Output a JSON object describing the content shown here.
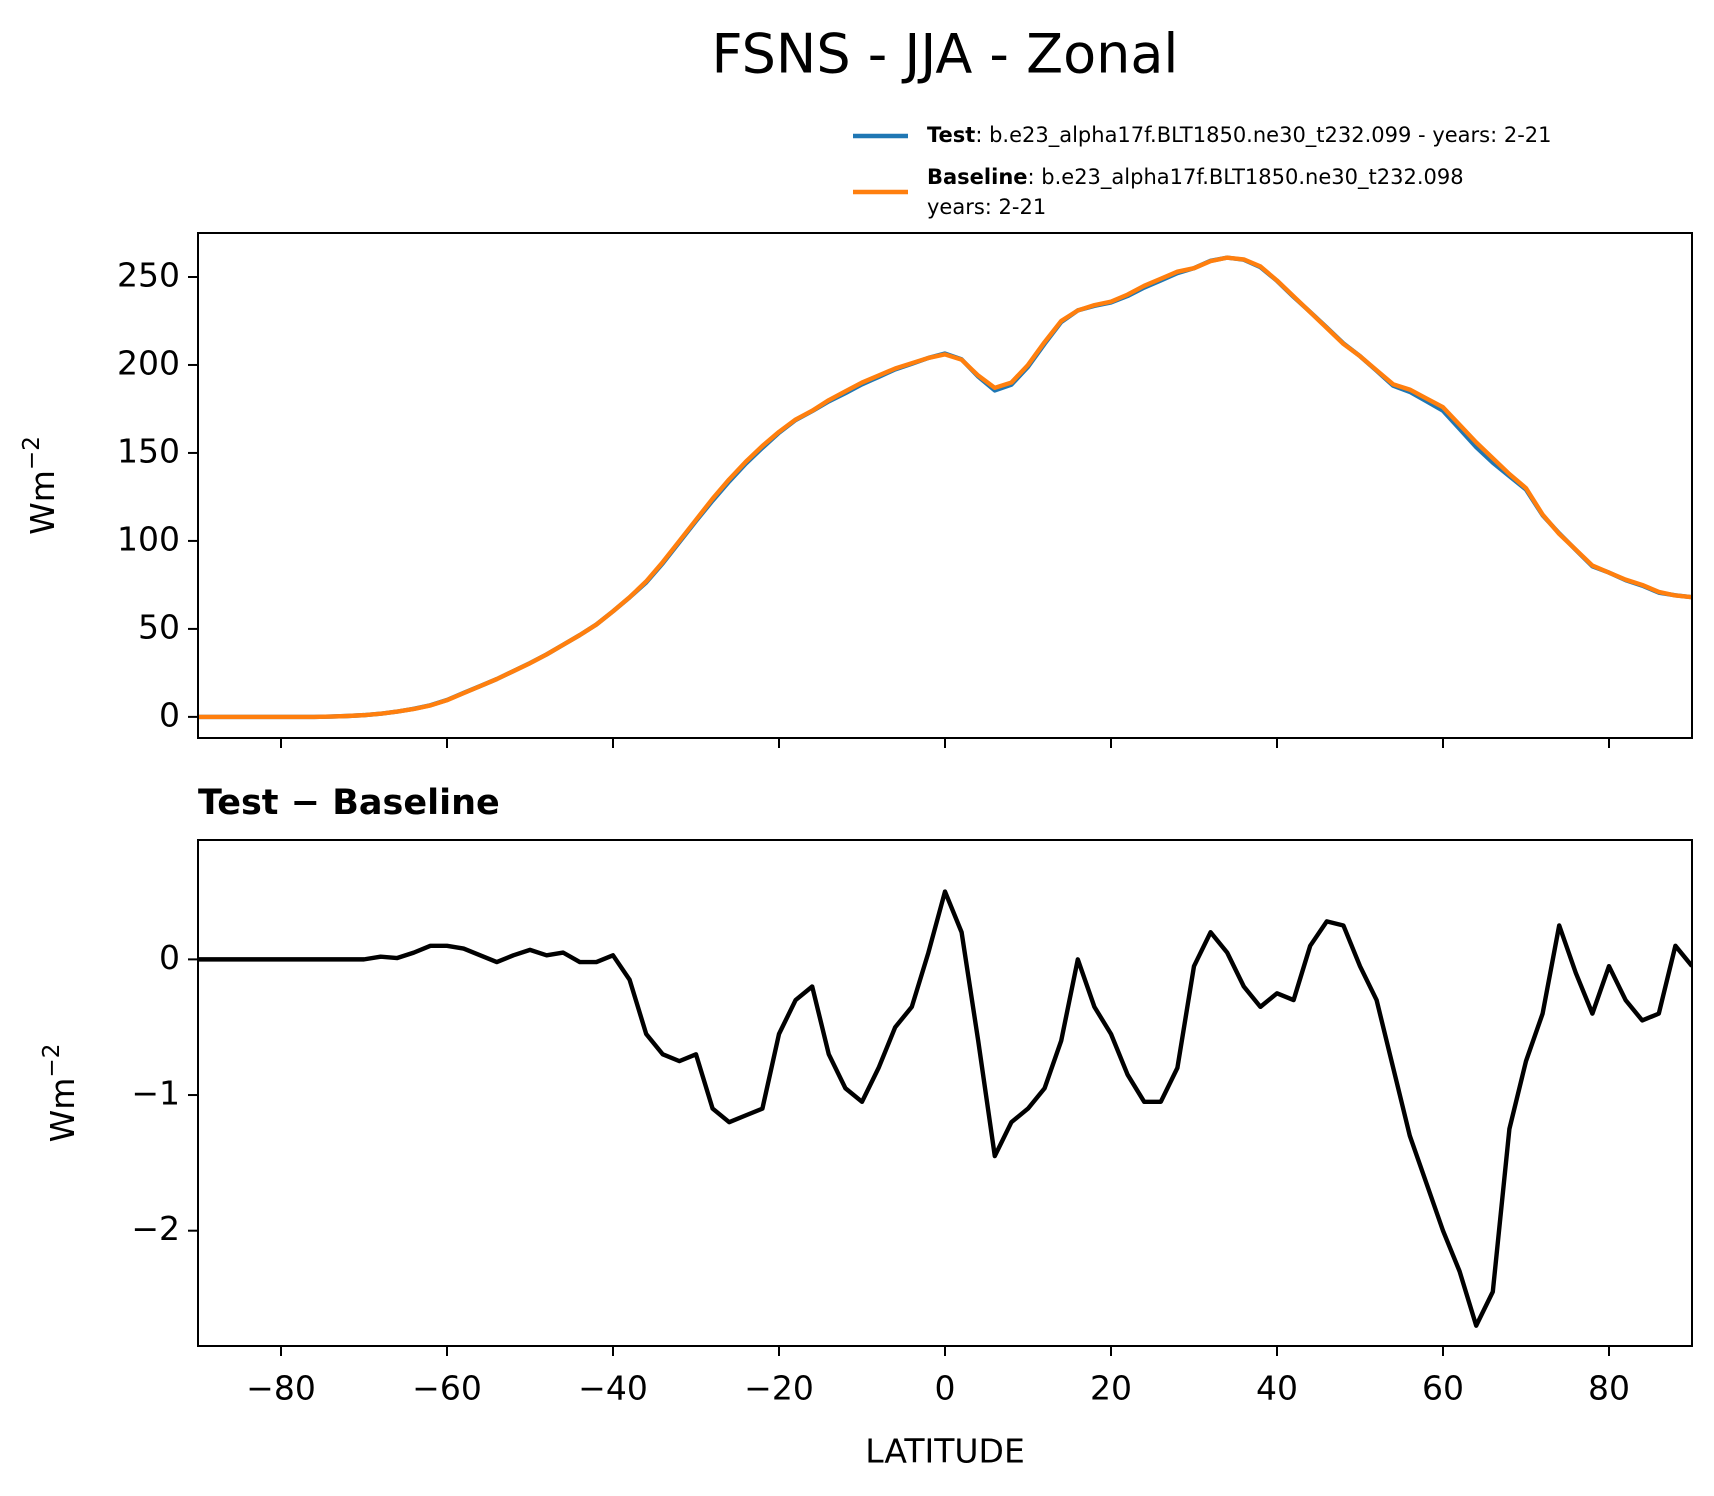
{
  "title": "FSNS - JJA - Zonal",
  "chart_data": [
    {
      "type": "line",
      "ylabel": {
        "base": "Wm",
        "exponent": "−2"
      },
      "legend": "upper right",
      "x": [
        -90,
        -88,
        -86,
        -84,
        -82,
        -80,
        -78,
        -76,
        -74,
        -72,
        -70,
        -68,
        -66,
        -64,
        -62,
        -60,
        -58,
        -56,
        -54,
        -52,
        -50,
        -48,
        -46,
        -44,
        -42,
        -40,
        -38,
        -36,
        -34,
        -32,
        -30,
        -28,
        -26,
        -24,
        -22,
        -20,
        -18,
        -16,
        -14,
        -12,
        -10,
        -8,
        -6,
        -4,
        -2,
        0,
        2,
        4,
        6,
        8,
        10,
        12,
        14,
        16,
        18,
        20,
        22,
        24,
        26,
        28,
        30,
        32,
        34,
        36,
        38,
        40,
        42,
        44,
        46,
        48,
        50,
        52,
        54,
        56,
        58,
        60,
        62,
        64,
        66,
        68,
        70,
        72,
        74,
        76,
        78,
        80,
        82,
        84,
        86,
        88,
        90
      ],
      "series": [
        {
          "name": "Test",
          "description": [
            ": b.e23_alpha17f.BLT1850.ne30_t232.099 - years: 2-21"
          ],
          "color": "#1f77b4",
          "values": [
            0,
            0,
            0,
            0,
            0,
            0,
            0,
            0,
            0.2,
            0.5,
            1,
            1.8,
            3,
            4.6,
            6.6,
            9.6,
            13.6,
            17.5,
            21.5,
            26,
            30.6,
            35.5,
            41,
            46.5,
            52.5,
            60,
            67.9,
            76.4,
            87.3,
            99.3,
            111.3,
            122.9,
            133.8,
            143.9,
            152.9,
            161.5,
            168.7,
            173.8,
            179.3,
            184,
            189,
            193.2,
            197.5,
            200.7,
            204,
            206.5,
            203.2,
            193.4,
            185.5,
            188.8,
            198.9,
            212,
            224.4,
            231,
            233.6,
            235.5,
            239.2,
            244,
            248,
            252.2,
            255,
            259.2,
            261,
            259.8,
            255.6,
            247.8,
            238.7,
            230.1,
            221.3,
            212.3,
            205,
            196.7,
            188.2,
            184.7,
            179.4,
            174,
            163.7,
            153.3,
            144.5,
            136.8,
            129.2,
            114.6,
            104.3,
            94.9,
            85.6,
            82,
            77.7,
            74.6,
            70.6,
            69.1,
            68
          ]
        },
        {
          "name": "Baseline",
          "description": [
            ": b.e23_alpha17f.BLT1850.ne30_t232.098",
            "years: 2-21"
          ],
          "color": "#ff7f0e",
          "values": [
            0,
            0,
            0,
            0,
            0,
            0,
            0,
            0,
            0.2,
            0.5,
            1,
            1.8,
            3,
            4.5,
            6.5,
            9.5,
            13.5,
            17.5,
            21.5,
            26,
            30.5,
            35.5,
            41,
            46.5,
            52.5,
            60,
            68,
            77,
            88,
            100,
            112,
            124,
            135,
            145,
            154,
            162,
            169,
            174,
            180,
            185,
            190,
            194,
            198,
            201,
            204,
            206,
            203,
            194,
            187,
            190,
            200,
            213,
            225,
            231,
            234,
            236,
            240,
            245,
            249,
            253,
            255,
            259,
            261,
            260,
            256,
            248,
            239,
            230,
            221,
            212,
            205,
            197,
            189,
            186,
            181,
            176,
            166,
            156,
            147,
            138,
            130,
            115,
            104,
            95,
            86,
            82,
            78,
            75,
            71,
            69,
            68
          ]
        }
      ],
      "xlim": [
        -90,
        90
      ],
      "xticks": [
        -80,
        -60,
        -40,
        -20,
        0,
        20,
        40,
        60,
        80
      ],
      "ylim": [
        -12,
        275
      ],
      "yticks": [
        0,
        50,
        100,
        150,
        200,
        250
      ]
    },
    {
      "type": "line",
      "title": "Test − Baseline",
      "xlabel": "LATITUDE",
      "ylabel": {
        "base": "Wm",
        "exponent": "−2"
      },
      "x": [
        -90,
        -88,
        -86,
        -84,
        -82,
        -80,
        -78,
        -76,
        -74,
        -72,
        -70,
        -68,
        -66,
        -64,
        -62,
        -60,
        -58,
        -56,
        -54,
        -52,
        -50,
        -48,
        -46,
        -44,
        -42,
        -40,
        -38,
        -36,
        -34,
        -32,
        -30,
        -28,
        -26,
        -24,
        -22,
        -20,
        -18,
        -16,
        -14,
        -12,
        -10,
        -8,
        -6,
        -4,
        -2,
        0,
        2,
        4,
        6,
        8,
        10,
        12,
        14,
        16,
        18,
        20,
        22,
        24,
        26,
        28,
        30,
        32,
        34,
        36,
        38,
        40,
        42,
        44,
        46,
        48,
        50,
        52,
        54,
        56,
        58,
        60,
        62,
        64,
        66,
        68,
        70,
        72,
        74,
        76,
        78,
        80,
        82,
        84,
        86,
        88,
        90
      ],
      "series": [
        {
          "name": "Test − Baseline",
          "color": "#000000",
          "values": [
            0,
            0,
            0,
            0,
            0,
            0,
            0,
            0,
            0,
            0,
            0,
            0.02,
            0.01,
            0.05,
            0.1,
            0.1,
            0.08,
            0.03,
            -0.02,
            0.03,
            0.07,
            0.03,
            0.05,
            -0.02,
            -0.02,
            0.03,
            -0.15,
            -0.55,
            -0.7,
            -0.75,
            -0.7,
            -1.1,
            -1.2,
            -1.15,
            -1.1,
            -0.55,
            -0.3,
            -0.2,
            -0.7,
            -0.95,
            -1.05,
            -0.8,
            -0.5,
            -0.35,
            0.05,
            0.5,
            0.2,
            -0.6,
            -1.45,
            -1.2,
            -1.1,
            -0.95,
            -0.6,
            0,
            -0.35,
            -0.55,
            -0.85,
            -1.05,
            -1.05,
            -0.8,
            -0.05,
            0.2,
            0.05,
            -0.2,
            -0.35,
            -0.25,
            -0.3,
            0.1,
            0.28,
            0.25,
            -0.05,
            -0.3,
            -0.8,
            -1.3,
            -1.65,
            -2.0,
            -2.3,
            -2.7,
            -2.45,
            -1.25,
            -0.75,
            -0.4,
            0.25,
            -0.1,
            -0.4,
            -0.05,
            -0.3,
            -0.45,
            -0.4,
            0.1,
            -0.05
          ]
        }
      ],
      "xlim": [
        -90,
        90
      ],
      "xticks": [
        {
          "value": -80,
          "label": "−80"
        },
        {
          "value": -60,
          "label": "−60"
        },
        {
          "value": -40,
          "label": "−40"
        },
        {
          "value": -20,
          "label": "−20"
        },
        0,
        20,
        40,
        60,
        80
      ],
      "ylim": [
        -2.85,
        0.88
      ],
      "yticks": [
        {
          "value": -2,
          "label": "−2"
        },
        {
          "value": -1,
          "label": "−1"
        },
        0
      ]
    }
  ]
}
